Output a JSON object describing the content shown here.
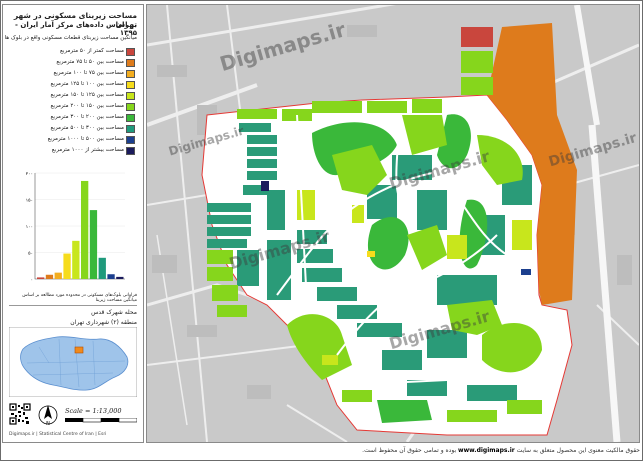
{
  "title": {
    "line1": "مساحت زیربنای مسکونی در شهر تهران",
    "line2": "بر اساس داده‌های مرکز آمار ایران - ۱۳۹۵"
  },
  "legend": {
    "heading": "میانگین مساحت زیربنای قطعات مسکونی واقع در بلوک ها",
    "items": [
      {
        "label": "مساحت کمتر از ۵۰ مترمربع",
        "color": "#c9463d"
      },
      {
        "label": "مساحت بین ۵۰ تا ۷۵ مترمربع",
        "color": "#de7b1c"
      },
      {
        "label": "مساحت بین ۷۵ تا ۱۰۰ مترمربع",
        "color": "#f3ad1f"
      },
      {
        "label": "مساحت بین ۱۰۰ تا ۱۲۵ مترمربع",
        "color": "#f6dc1c"
      },
      {
        "label": "مساحت بین ۱۲۵ تا ۱۵۰ مترمربع",
        "color": "#c8e61c"
      },
      {
        "label": "مساحت بین ۱۵۰ تا ۲۰۰ مترمربع",
        "color": "#86d61c"
      },
      {
        "label": "مساحت بین ۲۰۰ تا ۳۰۰ مترمربع",
        "color": "#3ab83a"
      },
      {
        "label": "مساحت بین ۳۰۰ تا ۵۰۰ مترمربع",
        "color": "#1f9a7c"
      },
      {
        "label": "مساحت بین ۵۰۰ تا ۱۰۰۰ مترمربع",
        "color": "#1c3f8e"
      },
      {
        "label": "مساحت بیشتر از ۱۰۰۰ مترمربع",
        "color": "#1b1b5c"
      }
    ]
  },
  "chart_data": {
    "type": "bar",
    "categories": [
      "<50",
      "50-75",
      "75-100",
      "100-125",
      "125-150",
      "150-200",
      "200-300",
      "300-500",
      "500-1000",
      ">1000"
    ],
    "values": [
      3,
      8,
      12,
      48,
      72,
      185,
      130,
      40,
      9,
      4
    ],
    "colors": [
      "#c9463d",
      "#de7b1c",
      "#f3ad1f",
      "#f6dc1c",
      "#c8e61c",
      "#86d61c",
      "#3ab83a",
      "#1f9a7c",
      "#1c3f8e",
      "#1b1b5c"
    ],
    "y_ticks": [
      "۲۰۰",
      "۱۵۰",
      "۱۰۰",
      "۵۰",
      "۰"
    ],
    "ylim": [
      0,
      200
    ],
    "caption": "فراوانی بلوک‌های مسکونی در محدوده مورد مطالعه بر اساس میانگین مساحت زیربنا"
  },
  "area": {
    "name": "محله شهرک قدس",
    "district": "منطقه (۲) شهرداری تهران"
  },
  "scale": "Scale = 1:13,000",
  "north": "N",
  "credits": "Digimaps.ir | Statistical Centre of Iran | Esri",
  "watermark": "Digimaps.ir",
  "footer": {
    "text": "حقوق مالکیت معنوی این محصول متعلق به سایت",
    "url": "www.digimaps.ir",
    "tail": "بوده و تمامی حقوق آن محفوظ است."
  },
  "map_colors": {
    "road": "#f4f4f4",
    "background": "#c9c9c9",
    "boundary": "#e53935"
  }
}
